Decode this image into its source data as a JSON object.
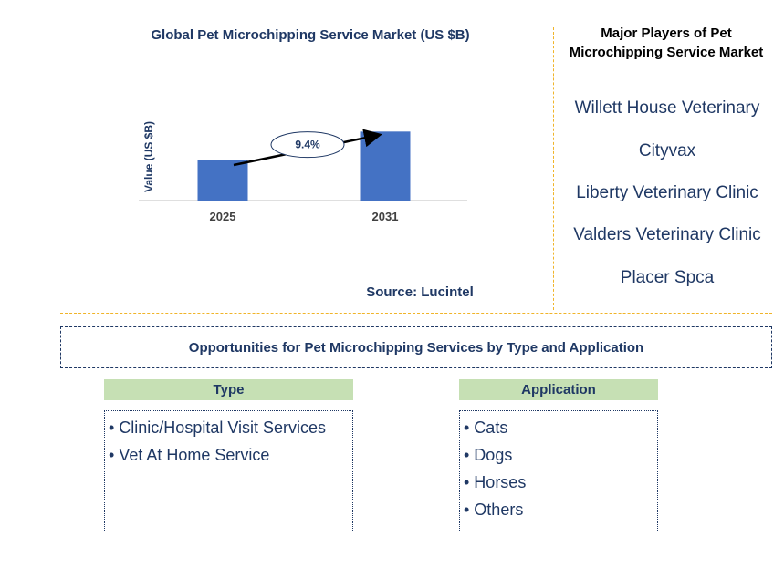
{
  "chart_data": {
    "type": "bar",
    "title": "Global Pet Microchipping Service Market (US $B)",
    "ylabel": "Value (US $B)",
    "categories": [
      "2025",
      "2031"
    ],
    "values": [
      1.0,
      1.72
    ],
    "ylim": [
      0,
      2.5
    ],
    "bar_color": "#4472c4",
    "annotation": {
      "label": "9.4%",
      "from": "2025",
      "to": "2031"
    }
  },
  "source": "Source: Lucintel",
  "players": {
    "title": "Major Players of Pet Microchipping Service Market",
    "items": [
      "Willett House Veterinary",
      "Cityvax",
      "Liberty Veterinary Clinic",
      "Valders Veterinary Clinic",
      "Placer Spca"
    ]
  },
  "opportunities_title": "Opportunities for Pet Microchipping Services by Type and Application",
  "type_segment": {
    "header": "Type",
    "items": [
      "• Clinic/Hospital Visit Services",
      "• Vet At Home Service"
    ]
  },
  "application_segment": {
    "header": "Application",
    "items": [
      "• Cats",
      "• Dogs",
      "• Horses",
      "• Others"
    ]
  },
  "colors": {
    "accent": "#4472c4",
    "text_dark": "#1f3864",
    "header_green": "#c6e0b4",
    "divider": "#f0b429"
  }
}
